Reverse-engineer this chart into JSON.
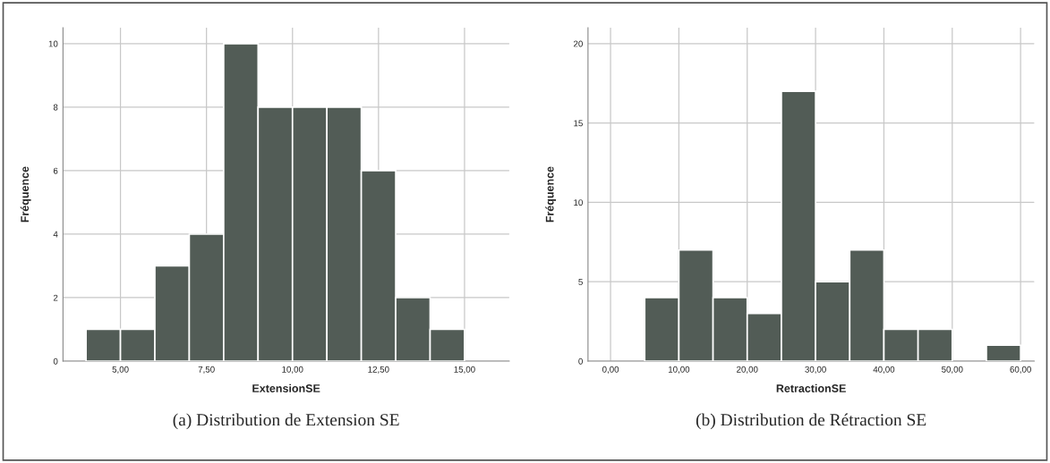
{
  "chart_data": [
    {
      "type": "histogram",
      "xlabel": "ExtensionSE",
      "ylabel": "Fréquence",
      "bins": [
        4,
        5,
        6,
        7,
        8,
        9,
        10,
        11,
        12,
        13,
        14,
        15
      ],
      "values": [
        1,
        1,
        3,
        4,
        10,
        8,
        8,
        8,
        6,
        2,
        1
      ],
      "color": "#525c56",
      "xlim": [
        3.33,
        16.3
      ],
      "ylim": [
        0,
        10.5
      ],
      "xticks": [
        {
          "value": 5,
          "label": "5,00"
        },
        {
          "value": 7.5,
          "label": "7,50"
        },
        {
          "value": 10,
          "label": "10,00"
        },
        {
          "value": 12.5,
          "label": "12,50"
        },
        {
          "value": 15,
          "label": "15,00"
        }
      ],
      "yticks": [
        0,
        2,
        4,
        6,
        8,
        10
      ],
      "grid": true,
      "annotations": [
        "(a) Distribution de Extension SE"
      ]
    },
    {
      "type": "histogram",
      "xlabel": "RetractionSE",
      "ylabel": "Fréquence",
      "bins": [
        5,
        10,
        15,
        20,
        25,
        30,
        35,
        40,
        45,
        50,
        55,
        60
      ],
      "values": [
        4,
        7,
        4,
        3,
        17,
        5,
        7,
        2,
        2,
        0,
        1
      ],
      "color": "#525c56",
      "xlim": [
        -3.3,
        62
      ],
      "ylim": [
        0,
        21
      ],
      "xticks": [
        {
          "value": 0,
          "label": "0,00"
        },
        {
          "value": 10,
          "label": "10,00"
        },
        {
          "value": 20,
          "label": "20,00"
        },
        {
          "value": 30,
          "label": "30,00"
        },
        {
          "value": 40,
          "label": "40,00"
        },
        {
          "value": 50,
          "label": "50,00"
        },
        {
          "value": 60,
          "label": "60,00"
        }
      ],
      "yticks": [
        0,
        5,
        10,
        15,
        20
      ],
      "grid": true,
      "annotations": [
        "(b) Distribution de Rétraction SE"
      ]
    }
  ]
}
